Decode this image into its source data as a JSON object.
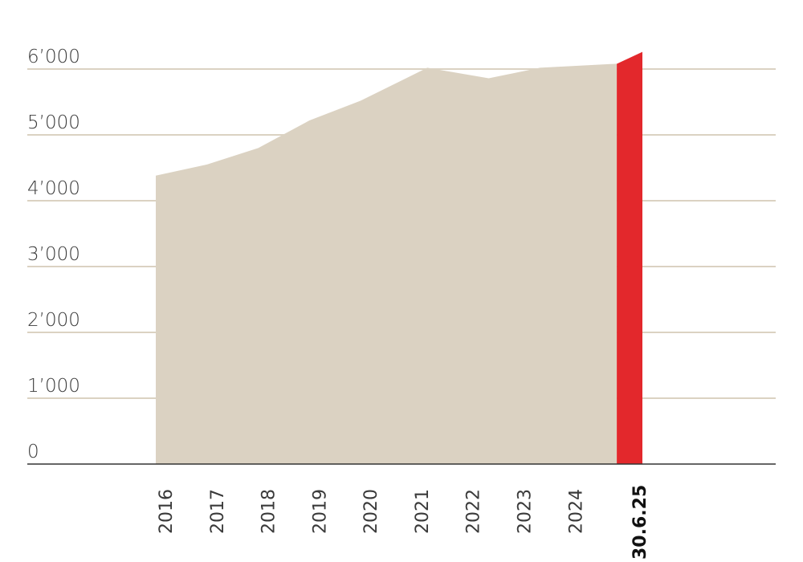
{
  "chart_data": {
    "type": "area",
    "title": "",
    "xlabel": "",
    "ylabel": "",
    "ylim": [
      0,
      6000
    ],
    "grid": true,
    "y_tick_labels": [
      "0",
      "1’000",
      "2’000",
      "3’000",
      "4’000",
      "5’000",
      "6’000"
    ],
    "y_ticks": [
      0,
      1000,
      2000,
      3000,
      4000,
      5000,
      6000
    ],
    "x_tick_labels": [
      "2016",
      "2017",
      "2018",
      "2019",
      "2020",
      "2021",
      "2022",
      "2023",
      "2024",
      "30.6.25"
    ],
    "highlight_label": "30.6.25",
    "area_points": [
      {
        "x": 2016.0,
        "y": 4380
      },
      {
        "x": 2017.0,
        "y": 4550
      },
      {
        "x": 2018.0,
        "y": 4800
      },
      {
        "x": 2019.0,
        "y": 5220
      },
      {
        "x": 2020.0,
        "y": 5520
      },
      {
        "x": 2021.3,
        "y": 6020
      },
      {
        "x": 2022.5,
        "y": 5860
      },
      {
        "x": 2023.5,
        "y": 6020
      },
      {
        "x": 2025.0,
        "y": 6080
      }
    ],
    "highlight_segment": {
      "x0": 2025.0,
      "x1": 2025.5,
      "y0": 6080,
      "y1": 6260
    },
    "colors": {
      "area": "#dbd2c2",
      "highlight": "#e3282c",
      "grid": "#dbd2c2",
      "axis": "#333333"
    }
  }
}
